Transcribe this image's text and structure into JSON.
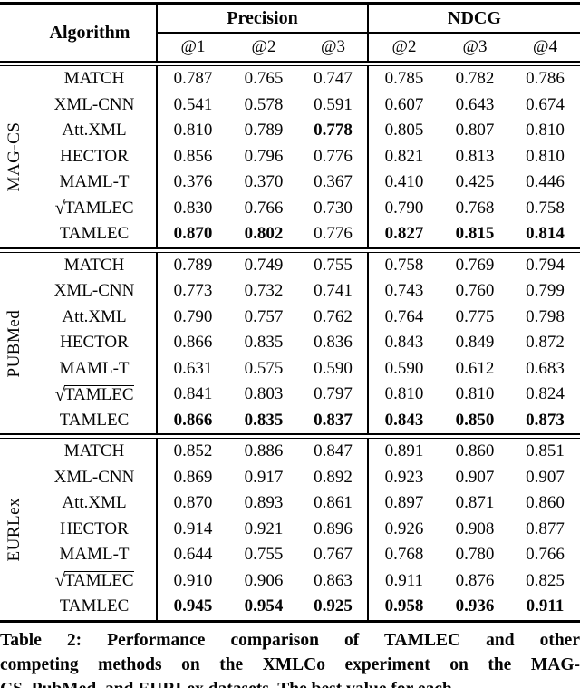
{
  "table": {
    "header": {
      "algorithm_label": "Algorithm",
      "groups": [
        {
          "label": "Precision",
          "subs": [
            "@1",
            "@2",
            "@3"
          ]
        },
        {
          "label": "NDCG",
          "subs": [
            "@2",
            "@3",
            "@4"
          ]
        }
      ]
    },
    "sections": [
      {
        "dataset": "MAG-CS",
        "rows": [
          {
            "algorithm": "MATCH",
            "values": [
              {
                "v": "0.787",
                "b": false
              },
              {
                "v": "0.765",
                "b": false
              },
              {
                "v": "0.747",
                "b": false
              },
              {
                "v": "0.785",
                "b": false
              },
              {
                "v": "0.782",
                "b": false
              },
              {
                "v": "0.786",
                "b": false
              }
            ]
          },
          {
            "algorithm": "XML-CNN",
            "values": [
              {
                "v": "0.541",
                "b": false
              },
              {
                "v": "0.578",
                "b": false
              },
              {
                "v": "0.591",
                "b": false
              },
              {
                "v": "0.607",
                "b": false
              },
              {
                "v": "0.643",
                "b": false
              },
              {
                "v": "0.674",
                "b": false
              }
            ]
          },
          {
            "algorithm": "Att.XML",
            "values": [
              {
                "v": "0.810",
                "b": false
              },
              {
                "v": "0.789",
                "b": false
              },
              {
                "v": "0.778",
                "b": true
              },
              {
                "v": "0.805",
                "b": false
              },
              {
                "v": "0.807",
                "b": false
              },
              {
                "v": "0.810",
                "b": false
              }
            ]
          },
          {
            "algorithm": "HECTOR",
            "values": [
              {
                "v": "0.856",
                "b": false
              },
              {
                "v": "0.796",
                "b": false
              },
              {
                "v": "0.776",
                "b": false
              },
              {
                "v": "0.821",
                "b": false
              },
              {
                "v": "0.813",
                "b": false
              },
              {
                "v": "0.810",
                "b": false
              }
            ]
          },
          {
            "algorithm": "MAML-T",
            "values": [
              {
                "v": "0.376",
                "b": false
              },
              {
                "v": "0.370",
                "b": false
              },
              {
                "v": "0.367",
                "b": false
              },
              {
                "v": "0.410",
                "b": false
              },
              {
                "v": "0.425",
                "b": false
              },
              {
                "v": "0.446",
                "b": false
              }
            ]
          },
          {
            "algorithm": "TAMLEC",
            "radical_prefix": "√",
            "values": [
              {
                "v": "0.830",
                "b": false
              },
              {
                "v": "0.766",
                "b": false
              },
              {
                "v": "0.730",
                "b": false
              },
              {
                "v": "0.790",
                "b": false
              },
              {
                "v": "0.768",
                "b": false
              },
              {
                "v": "0.758",
                "b": false
              }
            ]
          },
          {
            "algorithm": "TAMLEC",
            "values": [
              {
                "v": "0.870",
                "b": true
              },
              {
                "v": "0.802",
                "b": true
              },
              {
                "v": "0.776",
                "b": false
              },
              {
                "v": "0.827",
                "b": true
              },
              {
                "v": "0.815",
                "b": true
              },
              {
                "v": "0.814",
                "b": true
              }
            ]
          }
        ]
      },
      {
        "dataset": "PUBMed",
        "rows": [
          {
            "algorithm": "MATCH",
            "values": [
              {
                "v": "0.789",
                "b": false
              },
              {
                "v": "0.749",
                "b": false
              },
              {
                "v": "0.755",
                "b": false
              },
              {
                "v": "0.758",
                "b": false
              },
              {
                "v": "0.769",
                "b": false
              },
              {
                "v": "0.794",
                "b": false
              }
            ]
          },
          {
            "algorithm": "XML-CNN",
            "values": [
              {
                "v": "0.773",
                "b": false
              },
              {
                "v": "0.732",
                "b": false
              },
              {
                "v": "0.741",
                "b": false
              },
              {
                "v": "0.743",
                "b": false
              },
              {
                "v": "0.760",
                "b": false
              },
              {
                "v": "0.799",
                "b": false
              }
            ]
          },
          {
            "algorithm": "Att.XML",
            "values": [
              {
                "v": "0.790",
                "b": false
              },
              {
                "v": "0.757",
                "b": false
              },
              {
                "v": "0.762",
                "b": false
              },
              {
                "v": "0.764",
                "b": false
              },
              {
                "v": "0.775",
                "b": false
              },
              {
                "v": "0.798",
                "b": false
              }
            ]
          },
          {
            "algorithm": "HECTOR",
            "values": [
              {
                "v": "0.866",
                "b": false
              },
              {
                "v": "0.835",
                "b": false
              },
              {
                "v": "0.836",
                "b": false
              },
              {
                "v": "0.843",
                "b": false
              },
              {
                "v": "0.849",
                "b": false
              },
              {
                "v": "0.872",
                "b": false
              }
            ]
          },
          {
            "algorithm": "MAML-T",
            "values": [
              {
                "v": "0.631",
                "b": false
              },
              {
                "v": "0.575",
                "b": false
              },
              {
                "v": "0.590",
                "b": false
              },
              {
                "v": "0.590",
                "b": false
              },
              {
                "v": "0.612",
                "b": false
              },
              {
                "v": "0.683",
                "b": false
              }
            ]
          },
          {
            "algorithm": "TAMLEC",
            "radical_prefix": "√",
            "values": [
              {
                "v": "0.841",
                "b": false
              },
              {
                "v": "0.803",
                "b": false
              },
              {
                "v": "0.797",
                "b": false
              },
              {
                "v": "0.810",
                "b": false
              },
              {
                "v": "0.810",
                "b": false
              },
              {
                "v": "0.824",
                "b": false
              }
            ]
          },
          {
            "algorithm": "TAMLEC",
            "values": [
              {
                "v": "0.866",
                "b": true
              },
              {
                "v": "0.835",
                "b": true
              },
              {
                "v": "0.837",
                "b": true
              },
              {
                "v": "0.843",
                "b": true
              },
              {
                "v": "0.850",
                "b": true
              },
              {
                "v": "0.873",
                "b": true
              }
            ]
          }
        ]
      },
      {
        "dataset": "EURLex",
        "rows": [
          {
            "algorithm": "MATCH",
            "values": [
              {
                "v": "0.852",
                "b": false
              },
              {
                "v": "0.886",
                "b": false
              },
              {
                "v": "0.847",
                "b": false
              },
              {
                "v": "0.891",
                "b": false
              },
              {
                "v": "0.860",
                "b": false
              },
              {
                "v": "0.851",
                "b": false
              }
            ]
          },
          {
            "algorithm": "XML-CNN",
            "values": [
              {
                "v": "0.869",
                "b": false
              },
              {
                "v": "0.917",
                "b": false
              },
              {
                "v": "0.892",
                "b": false
              },
              {
                "v": "0.923",
                "b": false
              },
              {
                "v": "0.907",
                "b": false
              },
              {
                "v": "0.907",
                "b": false
              }
            ]
          },
          {
            "algorithm": "Att.XML",
            "values": [
              {
                "v": "0.870",
                "b": false
              },
              {
                "v": "0.893",
                "b": false
              },
              {
                "v": "0.861",
                "b": false
              },
              {
                "v": "0.897",
                "b": false
              },
              {
                "v": "0.871",
                "b": false
              },
              {
                "v": "0.860",
                "b": false
              }
            ]
          },
          {
            "algorithm": "HECTOR",
            "values": [
              {
                "v": "0.914",
                "b": false
              },
              {
                "v": "0.921",
                "b": false
              },
              {
                "v": "0.896",
                "b": false
              },
              {
                "v": "0.926",
                "b": false
              },
              {
                "v": "0.908",
                "b": false
              },
              {
                "v": "0.877",
                "b": false
              }
            ]
          },
          {
            "algorithm": "MAML-T",
            "values": [
              {
                "v": "0.644",
                "b": false
              },
              {
                "v": "0.755",
                "b": false
              },
              {
                "v": "0.767",
                "b": false
              },
              {
                "v": "0.768",
                "b": false
              },
              {
                "v": "0.780",
                "b": false
              },
              {
                "v": "0.766",
                "b": false
              }
            ]
          },
          {
            "algorithm": "TAMLEC",
            "radical_prefix": "√",
            "values": [
              {
                "v": "0.910",
                "b": false
              },
              {
                "v": "0.906",
                "b": false
              },
              {
                "v": "0.863",
                "b": false
              },
              {
                "v": "0.911",
                "b": false
              },
              {
                "v": "0.876",
                "b": false
              },
              {
                "v": "0.825",
                "b": false
              }
            ]
          },
          {
            "algorithm": "TAMLEC",
            "values": [
              {
                "v": "0.945",
                "b": true
              },
              {
                "v": "0.954",
                "b": true
              },
              {
                "v": "0.925",
                "b": true
              },
              {
                "v": "0.958",
                "b": true
              },
              {
                "v": "0.936",
                "b": true
              },
              {
                "v": "0.911",
                "b": true
              }
            ]
          }
        ]
      }
    ]
  },
  "caption": {
    "lines": [
      "Table 2: Performance comparison of TAMLEC and other",
      "competing methods on the XMLCo experiment on the MAG-",
      "CS, PubMed, and EURLex datasets. The best value for each"
    ]
  }
}
